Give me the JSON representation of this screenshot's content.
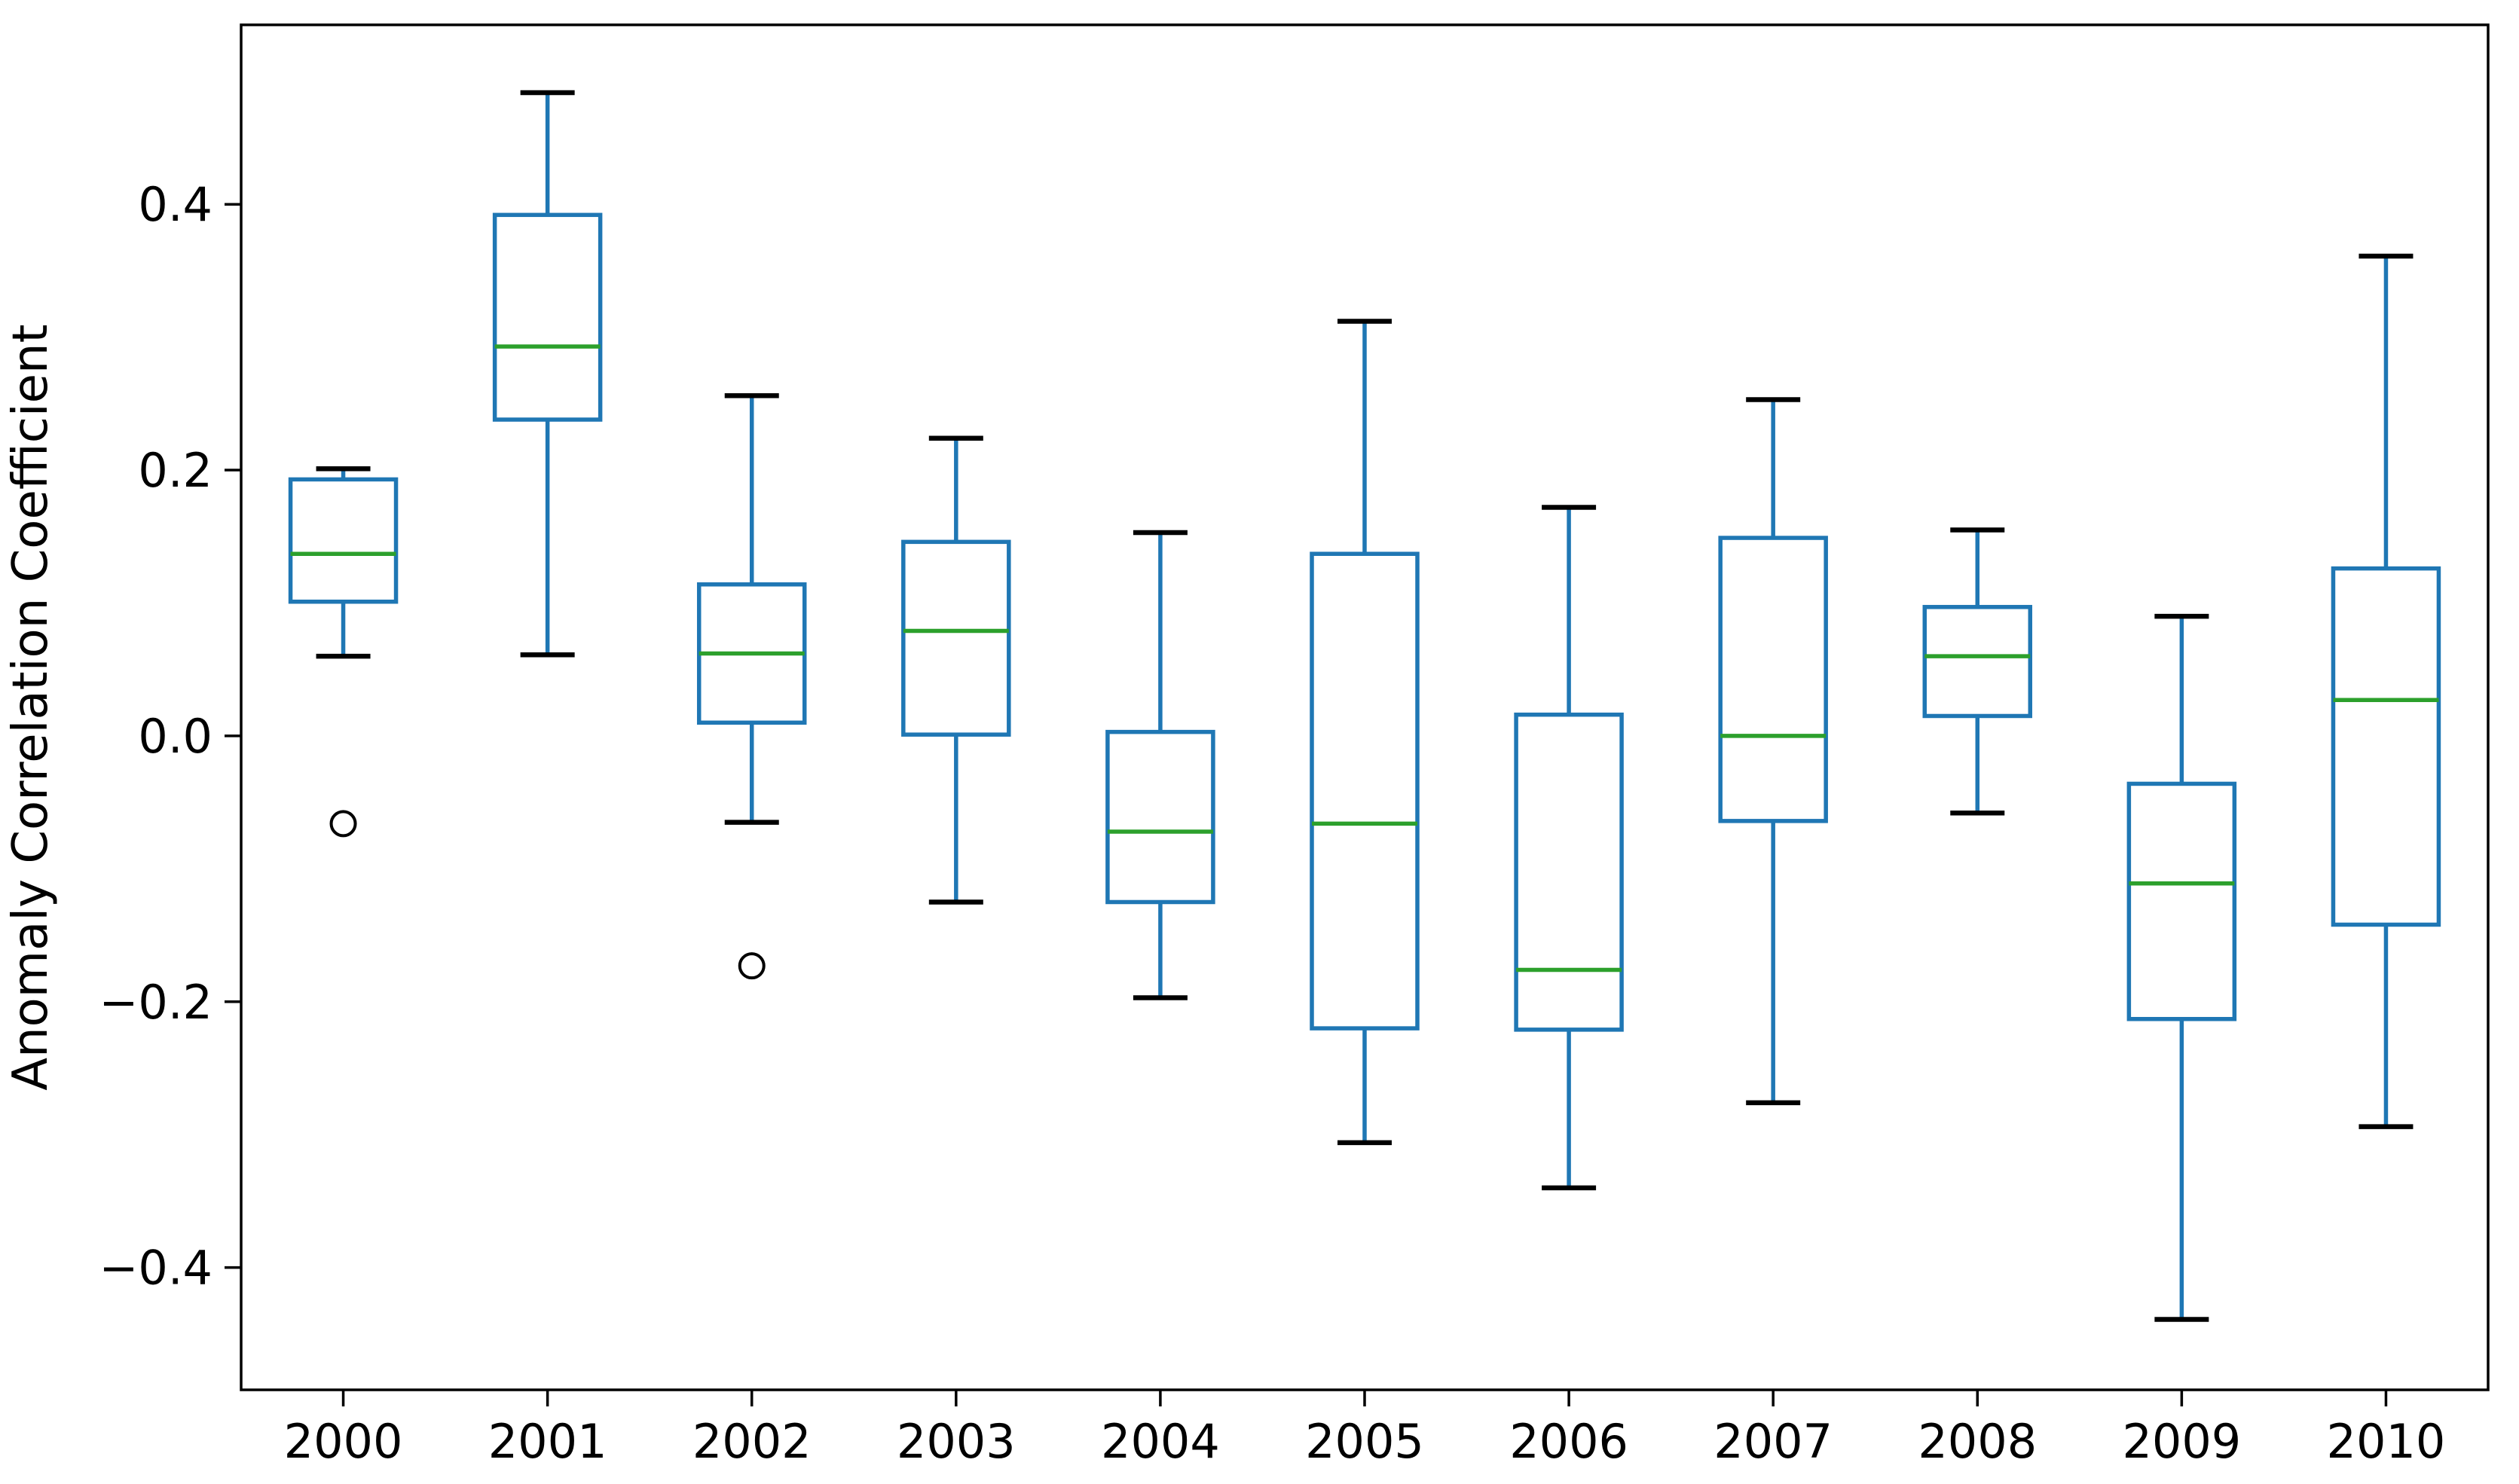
{
  "chart_data": {
    "type": "boxplot",
    "title": "",
    "xlabel": "",
    "ylabel": "Anomaly Correlation Coefficient",
    "categories": [
      "2000",
      "2001",
      "2002",
      "2003",
      "2004",
      "2005",
      "2006",
      "2007",
      "2008",
      "2009",
      "2010"
    ],
    "yticks": [
      0.4,
      0.2,
      0.0,
      -0.2,
      -0.4
    ],
    "ytick_labels": [
      "0.4",
      "0.2",
      "0.0",
      "−0.2",
      "−0.4"
    ],
    "ylim": [
      -0.492,
      0.535
    ],
    "grid": true,
    "legend": null,
    "series": [
      {
        "category": "2000",
        "whisker_low": 0.06,
        "q1": 0.101,
        "median": 0.137,
        "q3": 0.193,
        "whisker_high": 0.201,
        "outliers": [
          -0.066
        ]
      },
      {
        "category": "2001",
        "whisker_low": 0.061,
        "q1": 0.238,
        "median": 0.293,
        "q3": 0.392,
        "whisker_high": 0.484,
        "outliers": []
      },
      {
        "category": "2002",
        "whisker_low": -0.065,
        "q1": 0.01,
        "median": 0.062,
        "q3": 0.114,
        "whisker_high": 0.256,
        "outliers": [
          -0.173
        ]
      },
      {
        "category": "2003",
        "whisker_low": -0.125,
        "q1": 0.001,
        "median": 0.079,
        "q3": 0.146,
        "whisker_high": 0.224,
        "outliers": []
      },
      {
        "category": "2004",
        "whisker_low": -0.197,
        "q1": -0.125,
        "median": -0.072,
        "q3": 0.003,
        "whisker_high": 0.153,
        "outliers": []
      },
      {
        "category": "2005",
        "whisker_low": -0.306,
        "q1": -0.22,
        "median": -0.066,
        "q3": 0.137,
        "whisker_high": 0.312,
        "outliers": []
      },
      {
        "category": "2006",
        "whisker_low": -0.34,
        "q1": -0.221,
        "median": -0.176,
        "q3": 0.016,
        "whisker_high": 0.172,
        "outliers": []
      },
      {
        "category": "2007",
        "whisker_low": -0.276,
        "q1": -0.064,
        "median": 0.0,
        "q3": 0.149,
        "whisker_high": 0.253,
        "outliers": []
      },
      {
        "category": "2008",
        "whisker_low": -0.058,
        "q1": 0.015,
        "median": 0.06,
        "q3": 0.097,
        "whisker_high": 0.155,
        "outliers": []
      },
      {
        "category": "2009",
        "whisker_low": -0.439,
        "q1": -0.213,
        "median": -0.111,
        "q3": -0.036,
        "whisker_high": 0.09,
        "outliers": []
      },
      {
        "category": "2010",
        "whisker_low": -0.294,
        "q1": -0.142,
        "median": 0.027,
        "q3": 0.126,
        "whisker_high": 0.361,
        "outliers": []
      }
    ],
    "colors": {
      "box": "#1f77b4",
      "whisker": "#1f77b4",
      "median": "#2ca02c",
      "cap": "#000000",
      "outlier": "#000000",
      "grid": "#b0b0b0",
      "axis": "#000000",
      "background": "#ffffff"
    }
  }
}
